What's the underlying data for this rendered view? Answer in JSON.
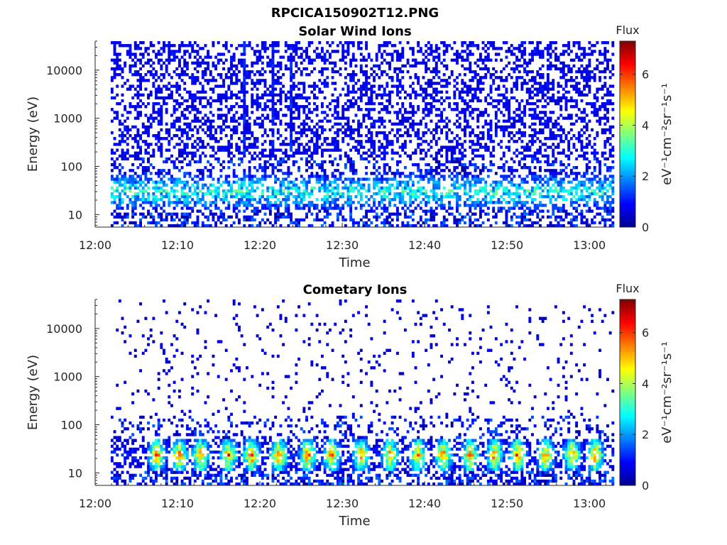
{
  "figure_title": "RPCICA150902T12.PNG",
  "colors": {
    "background": "#ffffff",
    "axis": "#262626",
    "colormap": [
      "#00008f",
      "#0000ff",
      "#0080ff",
      "#00ffff",
      "#80ff80",
      "#ffff00",
      "#ff8000",
      "#ff0000",
      "#800000"
    ]
  },
  "chart_data": [
    {
      "type": "heatmap",
      "title": "Solar Wind Ions",
      "xlabel": "Time",
      "ylabel": "Energy (eV)",
      "x_ticks": [
        "12:00",
        "12:10",
        "12:20",
        "12:30",
        "12:40",
        "12:50",
        "13:00"
      ],
      "x_range_minutes": [
        0,
        63
      ],
      "y_scale": "log",
      "y_ticks": [
        "10",
        "100",
        "1000",
        "10000"
      ],
      "y_range": [
        5.5,
        40000
      ],
      "colorbar": {
        "label": "Flux",
        "units": "eV⁻¹cm⁻²sr⁻¹s⁻¹",
        "ticks": [
          "0",
          "2",
          "4",
          "6"
        ],
        "range": [
          0,
          7.3
        ]
      },
      "pattern": {
        "data_start_minute": 1.6,
        "high_energy_sparse_level": 0.8,
        "low_energy_band_eV": [
          15,
          60
        ],
        "band_peak_level": 3.5,
        "bright_vertical_streak_minutes": [
          18.0,
          21.5,
          23.7
        ]
      }
    },
    {
      "type": "heatmap",
      "title": "Cometary Ions",
      "xlabel": "Time",
      "ylabel": "Energy (eV)",
      "x_ticks": [
        "12:00",
        "12:10",
        "12:20",
        "12:30",
        "12:40",
        "12:50",
        "13:00"
      ],
      "x_range_minutes": [
        0,
        63
      ],
      "y_scale": "log",
      "y_ticks": [
        "10",
        "100",
        "1000",
        "10000"
      ],
      "y_range": [
        5.5,
        40000
      ],
      "colorbar": {
        "label": "Flux",
        "units": "eV⁻¹cm⁻²sr⁻¹s⁻¹",
        "ticks": [
          "0",
          "2",
          "4",
          "6"
        ],
        "range": [
          0,
          7.3
        ]
      },
      "pattern": {
        "data_start_minute": 1.6,
        "high_energy_sparse_level": 0.6,
        "low_energy_band_eV": [
          12,
          45
        ],
        "band_peak_level": 6.2,
        "bright_patch_minutes": [
          7.5,
          10.2,
          12.8,
          16.2,
          19.0,
          22.3,
          25.8,
          28.7,
          32.3,
          35.8,
          39.2,
          42.3,
          45.5,
          48.5,
          51.3,
          54.7,
          57.9,
          60.7
        ]
      }
    }
  ]
}
